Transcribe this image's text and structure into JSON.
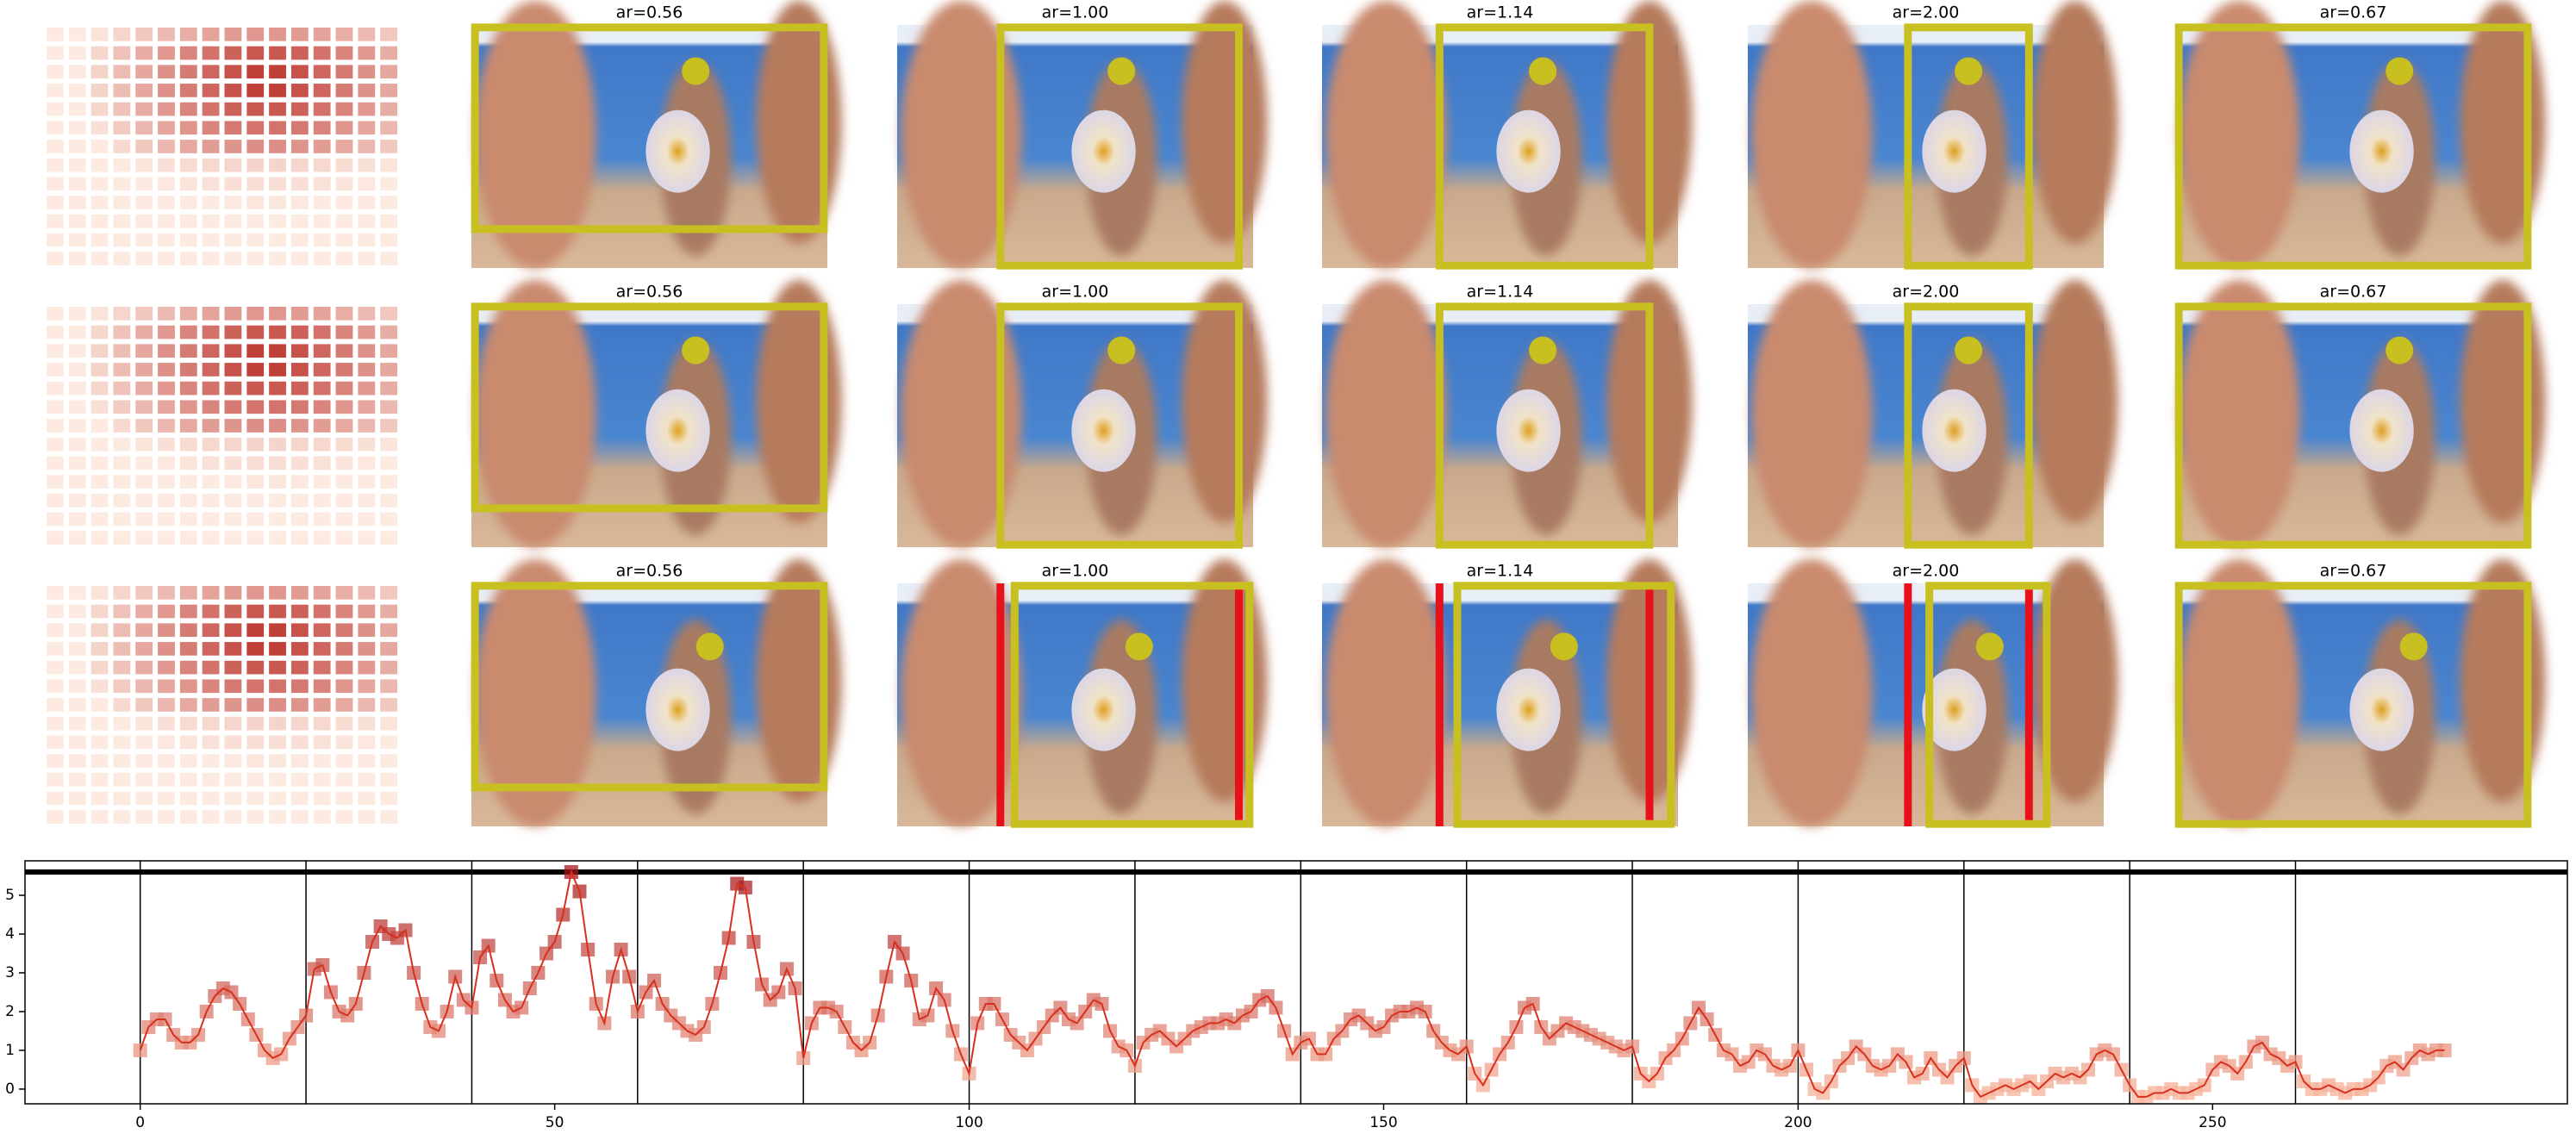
{
  "panels": {
    "titles": [
      [
        "ar=0.56",
        "ar=1.00",
        "ar=1.14",
        "ar=2.00",
        "ar=0.67"
      ],
      [
        "ar=0.56",
        "ar=1.00",
        "ar=1.14",
        "ar=2.00",
        "ar=0.67"
      ],
      [
        "ar=0.56",
        "ar=1.00",
        "ar=1.14",
        "ar=2.00",
        "ar=0.67"
      ]
    ]
  },
  "chart_data": {
    "type": "line",
    "values": [
      1.0,
      1.6,
      1.8,
      1.8,
      1.4,
      1.2,
      1.2,
      1.4,
      2.0,
      2.4,
      2.6,
      2.5,
      2.2,
      1.8,
      1.4,
      1.0,
      0.8,
      0.9,
      1.3,
      1.6,
      1.9,
      3.1,
      3.2,
      2.5,
      2.0,
      1.9,
      2.2,
      3.0,
      3.8,
      4.2,
      4.0,
      3.9,
      4.1,
      3.0,
      2.2,
      1.6,
      1.5,
      2.0,
      2.9,
      2.3,
      2.1,
      3.4,
      3.7,
      2.8,
      2.3,
      2.0,
      2.1,
      2.6,
      3.0,
      3.5,
      3.8,
      4.5,
      5.6,
      5.1,
      3.6,
      2.2,
      1.7,
      2.9,
      3.6,
      2.9,
      2.0,
      2.5,
      2.8,
      2.2,
      1.9,
      1.7,
      1.5,
      1.4,
      1.6,
      2.2,
      3.0,
      3.9,
      5.3,
      5.2,
      3.8,
      2.7,
      2.3,
      2.5,
      3.1,
      2.6,
      0.8,
      1.7,
      2.1,
      2.1,
      2.0,
      1.6,
      1.2,
      1.0,
      1.2,
      1.9,
      2.9,
      3.8,
      3.5,
      2.8,
      1.8,
      1.9,
      2.6,
      2.3,
      1.5,
      0.9,
      0.4,
      1.7,
      2.2,
      2.2,
      1.8,
      1.4,
      1.2,
      1.0,
      1.3,
      1.6,
      1.9,
      2.1,
      1.8,
      1.7,
      2.0,
      2.3,
      2.2,
      1.5,
      1.1,
      1.0,
      0.6,
      1.2,
      1.4,
      1.5,
      1.3,
      1.1,
      1.3,
      1.5,
      1.6,
      1.7,
      1.7,
      1.8,
      1.7,
      1.9,
      2.0,
      2.3,
      2.4,
      2.1,
      1.5,
      0.9,
      1.2,
      1.3,
      0.9,
      0.9,
      1.3,
      1.5,
      1.8,
      1.9,
      1.7,
      1.5,
      1.6,
      1.9,
      2.0,
      2.0,
      2.1,
      2.0,
      1.5,
      1.2,
      1.0,
      0.9,
      1.1,
      0.4,
      0.1,
      0.5,
      0.9,
      1.2,
      1.6,
      2.1,
      2.2,
      1.6,
      1.3,
      1.5,
      1.7,
      1.6,
      1.5,
      1.4,
      1.3,
      1.2,
      1.1,
      1.0,
      1.1,
      0.4,
      0.2,
      0.4,
      0.8,
      1.0,
      1.3,
      1.7,
      2.1,
      1.8,
      1.4,
      1.0,
      0.9,
      0.6,
      0.7,
      1.0,
      0.9,
      0.6,
      0.5,
      0.6,
      1.0,
      0.5,
      0.0,
      -0.1,
      0.2,
      0.6,
      0.8,
      1.1,
      0.9,
      0.6,
      0.5,
      0.6,
      0.9,
      0.7,
      0.3,
      0.4,
      0.8,
      0.5,
      0.3,
      0.6,
      0.8,
      0.1,
      -0.2,
      -0.1,
      0.0,
      0.1,
      0.0,
      0.1,
      0.2,
      0.0,
      0.2,
      0.4,
      0.3,
      0.4,
      0.3,
      0.5,
      0.9,
      1.0,
      0.9,
      0.5,
      0.1,
      -0.2,
      -0.2,
      -0.1,
      -0.1,
      0.0,
      -0.1,
      -0.1,
      0.0,
      0.1,
      0.5,
      0.7,
      0.6,
      0.4,
      0.7,
      1.1,
      1.2,
      0.9,
      0.8,
      0.6,
      0.7,
      0.2,
      0.0,
      0.0,
      0.1,
      0.0,
      -0.1,
      0.0,
      0.0,
      0.1,
      0.3,
      0.6,
      0.7,
      0.5,
      0.8,
      1.0,
      0.9,
      1.0,
      1.0
    ],
    "color": "#d7301f",
    "xlim": [
      -13.9,
      292.8
    ],
    "ylim": [
      -0.38,
      5.89
    ],
    "xticks": [
      0,
      50,
      100,
      150,
      200,
      250
    ],
    "yticks": [
      0,
      1,
      2,
      3,
      4,
      5
    ],
    "vlines": [
      0,
      20,
      40,
      60,
      80,
      100,
      120,
      140,
      160,
      180,
      200,
      220,
      240,
      260
    ],
    "hline": 5.6
  }
}
